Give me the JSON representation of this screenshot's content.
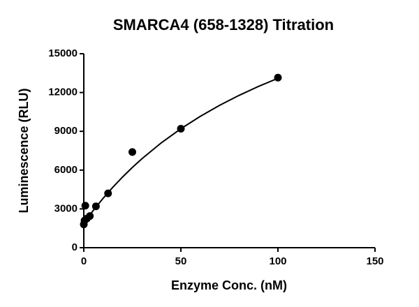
{
  "chart_data": {
    "type": "scatter",
    "title": "SMARCA4 (658-1328) Titration",
    "x_label": "Enzyme Conc. (nM)",
    "y_label": "Luminescence (RLU)",
    "x": [
      0,
      0.39,
      0.78,
      1.56,
      3.125,
      6.25,
      12.5,
      25,
      50,
      100
    ],
    "values": [
      1800,
      2100,
      3250,
      2250,
      2450,
      3200,
      4200,
      7400,
      9200,
      13150
    ],
    "color": "#000000",
    "curve": {
      "x": [
        0,
        5,
        10,
        15,
        20,
        25,
        30,
        40,
        50,
        60,
        70,
        80,
        90,
        100
      ],
      "values": [
        1900,
        2905,
        3829,
        4682,
        5471,
        6204,
        6887,
        8119,
        9201,
        10159,
        11014,
        11781,
        12473,
        13100
      ]
    },
    "xlim": [
      0,
      150
    ],
    "ylim": [
      0,
      15000
    ],
    "xticks": [
      0,
      50,
      100,
      150
    ],
    "yticks": [
      0,
      3000,
      6000,
      9000,
      12000,
      15000
    ]
  }
}
